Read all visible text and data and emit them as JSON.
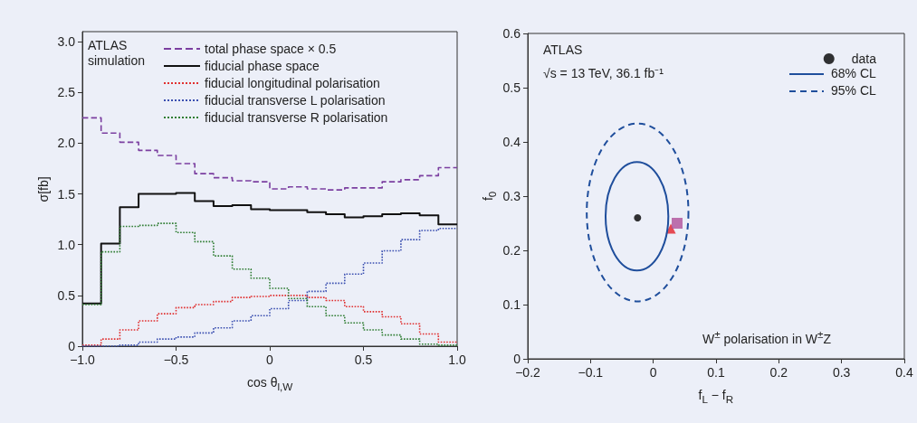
{
  "chart_data": [
    {
      "type": "histogram",
      "xlabel": "cos θ$_{l,W}$",
      "ylabel": "σ[fb]",
      "annotations": [
        "ATLAS simulation"
      ],
      "legend": "top",
      "grid": false,
      "bins": [
        -1,
        -0.9,
        -0.8,
        -0.7,
        -0.6,
        -0.5,
        -0.4,
        -0.3,
        -0.2,
        -0.1,
        0,
        0.1,
        0.2,
        0.3,
        0.4,
        0.5,
        0.6,
        0.7,
        0.8,
        0.9,
        1
      ],
      "xlim": [
        -1,
        1
      ],
      "xticks": [
        {
          "value": -1,
          "label": "−1.0"
        },
        {
          "value": -0.5,
          "label": "−0.5"
        },
        0,
        0.5,
        {
          "value": 1,
          "label": "1.0"
        }
      ],
      "ylim": [
        0,
        3.1
      ],
      "yticks": [
        0,
        0.5,
        {
          "value": 1,
          "label": "1.0"
        },
        1.5,
        {
          "value": 2,
          "label": "2.0"
        },
        2.5,
        {
          "value": 3,
          "label": "3.0"
        }
      ],
      "series": [
        {
          "name": "total phase space × 0.5",
          "color": "#7b3fa0",
          "line_style": "dashed",
          "values": [
            2.25,
            2.1,
            2.01,
            1.93,
            1.88,
            1.8,
            1.7,
            1.66,
            1.63,
            1.62,
            1.55,
            1.57,
            1.55,
            1.54,
            1.56,
            1.56,
            1.62,
            1.64,
            1.68,
            1.76
          ]
        },
        {
          "name": "fiducial phase space",
          "color": "#111111",
          "line_style": "solid",
          "values": [
            0.42,
            1.01,
            1.37,
            1.5,
            1.5,
            1.51,
            1.43,
            1.38,
            1.39,
            1.35,
            1.34,
            1.34,
            1.32,
            1.3,
            1.27,
            1.28,
            1.3,
            1.31,
            1.29,
            1.2
          ]
        },
        {
          "name": "fiducial longitudinal polarisation",
          "color": "#e03030",
          "line_style": "dotted",
          "values": [
            0.01,
            0.07,
            0.16,
            0.25,
            0.32,
            0.38,
            0.41,
            0.44,
            0.48,
            0.49,
            0.5,
            0.5,
            0.48,
            0.45,
            0.39,
            0.34,
            0.29,
            0.22,
            0.12,
            0.04
          ]
        },
        {
          "name": "fiducial transverse L polarisation",
          "color": "#3a4fb0",
          "line_style": "dotted",
          "values": [
            0,
            0,
            0.01,
            0.04,
            0.07,
            0.09,
            0.13,
            0.18,
            0.25,
            0.3,
            0.37,
            0.45,
            0.54,
            0.62,
            0.71,
            0.82,
            0.94,
            1.05,
            1.14,
            1.16
          ]
        },
        {
          "name": "fiducial transverse R polarisation",
          "color": "#2e7d32",
          "line_style": "dotted",
          "values": [
            0.41,
            0.93,
            1.18,
            1.19,
            1.21,
            1.12,
            1.03,
            0.89,
            0.76,
            0.67,
            0.57,
            0.47,
            0.39,
            0.3,
            0.23,
            0.16,
            0.11,
            0.07,
            0.02,
            0.01
          ]
        }
      ]
    },
    {
      "type": "scatter",
      "xlabel": "f$_{L}$ − f$_{R}$",
      "ylabel": "f$_{0}$",
      "annotations": [
        "ATLAS",
        "√s = 13 TeV, 36.1 fb⁻¹",
        "W$^{±}$ polarisation in W$^{±}$Z",
        "68% CL",
        "95% CL"
      ],
      "legend": "top right",
      "grid": false,
      "xlim": [
        -0.2,
        0.4
      ],
      "xticks": [
        {
          "value": -0.2,
          "label": "−0.2"
        },
        {
          "value": -0.1,
          "label": "−0.1"
        },
        0,
        0.1,
        0.2,
        0.3,
        0.4
      ],
      "ylim": [
        0,
        0.6
      ],
      "yticks": [
        0,
        0.1,
        0.2,
        0.3,
        0.4,
        0.5,
        0.6
      ],
      "series": [
        {
          "name": "data",
          "type": "scatter",
          "marker": "circle",
          "color": "#000000",
          "x": [
            -0.025
          ],
          "values": [
            0.26
          ]
        },
        {
          "type": "scatter",
          "marker": "triangle",
          "color": "#e3202a",
          "x": [
            0.028
          ],
          "values": [
            0.24
          ]
        },
        {
          "type": "scatter",
          "marker": "square",
          "color": "#b0509a",
          "x": [
            0.038
          ],
          "values": [
            0.25
          ]
        }
      ]
    }
  ]
}
